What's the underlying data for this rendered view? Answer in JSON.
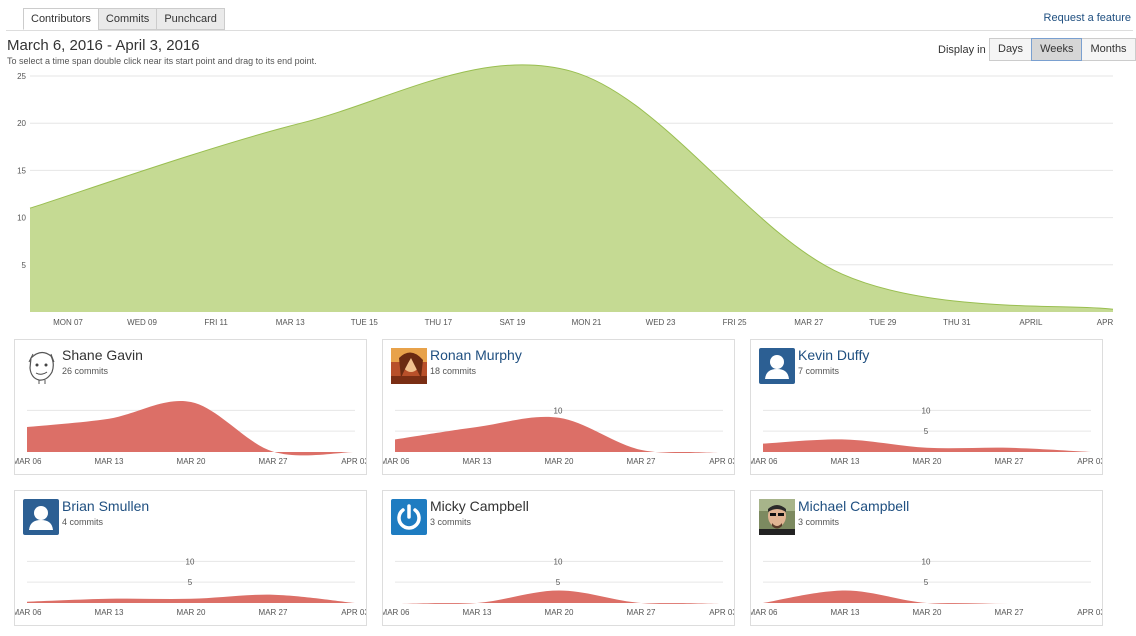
{
  "tabs": [
    {
      "label": "Contributors",
      "active": true
    },
    {
      "label": "Commits",
      "active": false
    },
    {
      "label": "Punchcard",
      "active": false
    }
  ],
  "request_feature": "Request a feature",
  "range_title": "March 6, 2016 - April 3, 2016",
  "range_hint": "To select a time span double click near its start point and drag to its end point.",
  "display": {
    "label": "Display in",
    "options": [
      "Days",
      "Weeks",
      "Months"
    ],
    "selected": "Weeks"
  },
  "colors": {
    "main_area": "#c5da93",
    "main_line": "#99be50",
    "mini_area": "#dc6f67"
  },
  "chart_data": [
    {
      "type": "area",
      "title": "",
      "x_ticks": [
        "MON 07",
        "WED 09",
        "FRI 11",
        "MAR 13",
        "TUE 15",
        "THU 17",
        "SAT 19",
        "MON 21",
        "WED 23",
        "FRI 25",
        "MAR 27",
        "TUE 29",
        "THU 31",
        "APRIL",
        "APR"
      ],
      "y_ticks": [
        "5",
        "10",
        "15",
        "20",
        "25"
      ],
      "ylim": [
        0,
        25
      ],
      "x": [
        "Mar 06",
        "Mar 13",
        "Mar 20",
        "Mar 27",
        "Apr 03"
      ],
      "values": [
        11,
        20,
        25.5,
        4,
        0.3
      ]
    },
    {
      "type": "area",
      "contributor": "Shane Gavin",
      "x_ticks": [
        "MAR 06",
        "MAR 13",
        "MAR 20",
        "MAR 27",
        "APR 03"
      ],
      "y_ticks": [
        "5",
        "10"
      ],
      "ylim": [
        0,
        12
      ],
      "x": [
        "Mar 06",
        "Mar 13",
        "Mar 20",
        "Mar 27",
        "Apr 03"
      ],
      "values": [
        6,
        8,
        12,
        0.1,
        0
      ]
    },
    {
      "type": "area",
      "contributor": "Ronan Murphy",
      "x_ticks": [
        "MAR 06",
        "MAR 13",
        "MAR 20",
        "MAR 27",
        "APR 03"
      ],
      "y_ticks": [
        "5",
        "10"
      ],
      "ylim": [
        0,
        12
      ],
      "x": [
        "Mar 06",
        "Mar 13",
        "Mar 20",
        "Mar 27",
        "Apr 03"
      ],
      "values": [
        3,
        6,
        8.2,
        0.5,
        0
      ]
    },
    {
      "type": "area",
      "contributor": "Kevin Duffy",
      "x_ticks": [
        "MAR 06",
        "MAR 13",
        "MAR 20",
        "MAR 27",
        "APR 03"
      ],
      "y_ticks": [
        "5",
        "10"
      ],
      "ylim": [
        0,
        12
      ],
      "x": [
        "Mar 06",
        "Mar 13",
        "Mar 20",
        "Mar 27",
        "Apr 03"
      ],
      "values": [
        2,
        3,
        1,
        1,
        0
      ]
    },
    {
      "type": "area",
      "contributor": "Brian Smullen",
      "x_ticks": [
        "MAR 06",
        "MAR 13",
        "MAR 20",
        "MAR 27",
        "APR 03"
      ],
      "y_ticks": [
        "5",
        "10"
      ],
      "ylim": [
        0,
        12
      ],
      "x": [
        "Mar 06",
        "Mar 13",
        "Mar 20",
        "Mar 27",
        "Apr 03"
      ],
      "values": [
        0.3,
        1,
        1,
        2,
        0
      ]
    },
    {
      "type": "area",
      "contributor": "Micky Campbell",
      "x_ticks": [
        "MAR 06",
        "MAR 13",
        "MAR 20",
        "MAR 27",
        "APR 03"
      ],
      "y_ticks": [
        "5",
        "10"
      ],
      "ylim": [
        0,
        12
      ],
      "x": [
        "Mar 06",
        "Mar 13",
        "Mar 20",
        "Mar 27",
        "Apr 03"
      ],
      "values": [
        0,
        0,
        3,
        0,
        0
      ]
    },
    {
      "type": "area",
      "contributor": "Michael Campbell",
      "x_ticks": [
        "MAR 06",
        "MAR 13",
        "MAR 20",
        "MAR 27",
        "APR 03"
      ],
      "y_ticks": [
        "5",
        "10"
      ],
      "ylim": [
        0,
        12
      ],
      "x": [
        "Mar 06",
        "Mar 13",
        "Mar 20",
        "Mar 27",
        "Apr 03"
      ],
      "values": [
        0,
        3,
        0,
        0,
        0
      ]
    }
  ],
  "contributors": [
    {
      "name": "Shane Gavin",
      "commits": "26 commits",
      "avatar": "sketch-face-avatar",
      "linked": false
    },
    {
      "name": "Ronan Murphy",
      "commits": "18 commits",
      "avatar": "photo-avatar",
      "linked": true
    },
    {
      "name": "Kevin Duffy",
      "commits": "7 commits",
      "avatar": "default-user-avatar",
      "linked": true
    },
    {
      "name": "Brian Smullen",
      "commits": "4 commits",
      "avatar": "default-user-avatar",
      "linked": true
    },
    {
      "name": "Micky Campbell",
      "commits": "3 commits",
      "avatar": "power-symbol-avatar",
      "linked": false
    },
    {
      "name": "Michael Campbell",
      "commits": "3 commits",
      "avatar": "photo-avatar-2",
      "linked": true
    }
  ]
}
